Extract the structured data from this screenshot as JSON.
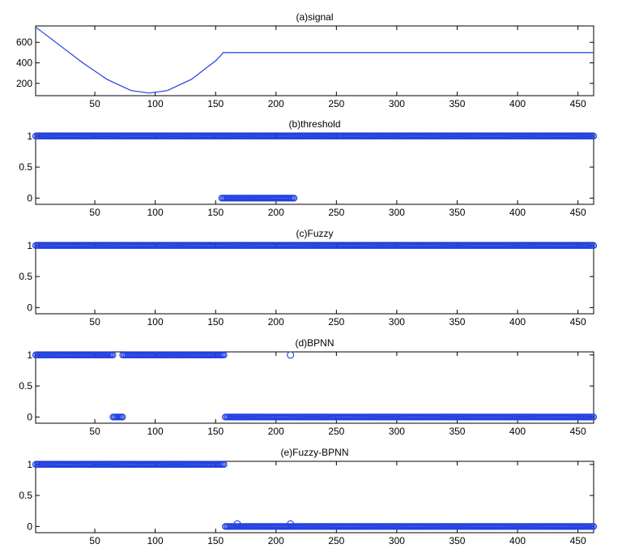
{
  "chart_data": [
    {
      "type": "line",
      "title": "(a)signal",
      "xlim": [
        1,
        463
      ],
      "ylim": [
        80,
        760
      ],
      "xticks": [
        50,
        100,
        150,
        200,
        250,
        300,
        350,
        400,
        450
      ],
      "yticks": [
        200,
        400,
        600
      ],
      "series": [
        {
          "color": "#1f3fe0",
          "x": [
            1,
            20,
            40,
            60,
            80,
            95,
            110,
            130,
            150,
            155,
            156,
            463
          ],
          "y": [
            750,
            580,
            400,
            240,
            130,
            105,
            130,
            240,
            420,
            480,
            500,
            500
          ]
        }
      ]
    },
    {
      "type": "scatter",
      "title": "(b)threshold",
      "xlim": [
        1,
        463
      ],
      "ylim": [
        -0.1,
        1.05
      ],
      "xticks": [
        50,
        100,
        150,
        200,
        250,
        300,
        350,
        400,
        450
      ],
      "yticks": [
        0,
        0.5,
        1
      ],
      "segments": [
        {
          "x_from": 1,
          "x_to": 463,
          "y": 1
        },
        {
          "x_from": 155,
          "x_to": 215,
          "y": 0
        }
      ]
    },
    {
      "type": "scatter",
      "title": "(c)Fuzzy",
      "xlim": [
        1,
        463
      ],
      "ylim": [
        -0.1,
        1.05
      ],
      "xticks": [
        50,
        100,
        150,
        200,
        250,
        300,
        350,
        400,
        450
      ],
      "yticks": [
        0,
        0.5,
        1
      ],
      "segments": [
        {
          "x_from": 1,
          "x_to": 463,
          "y": 1
        }
      ]
    },
    {
      "type": "scatter",
      "title": "(d)BPNN",
      "xlim": [
        1,
        463
      ],
      "ylim": [
        -0.1,
        1.05
      ],
      "xticks": [
        50,
        100,
        150,
        200,
        250,
        300,
        350,
        400,
        450
      ],
      "yticks": [
        0,
        0.5,
        1
      ],
      "segments": [
        {
          "x_from": 1,
          "x_to": 65,
          "y": 1
        },
        {
          "x_from": 65,
          "x_to": 73,
          "y": 0
        },
        {
          "x_from": 73,
          "x_to": 157,
          "y": 1
        },
        {
          "x_from": 158,
          "x_to": 463,
          "y": 0
        }
      ],
      "points": [
        {
          "x": 212,
          "y": 1
        }
      ]
    },
    {
      "type": "scatter",
      "title": "(e)Fuzzy-BPNN",
      "xlim": [
        1,
        463
      ],
      "ylim": [
        -0.1,
        1.05
      ],
      "xticks": [
        50,
        100,
        150,
        200,
        250,
        300,
        350,
        400,
        450
      ],
      "yticks": [
        0,
        0.5,
        1
      ],
      "segments": [
        {
          "x_from": 1,
          "x_to": 157,
          "y": 1
        },
        {
          "x_from": 158,
          "x_to": 463,
          "y": 0
        }
      ],
      "points": [
        {
          "x": 168,
          "y": 0.04
        },
        {
          "x": 212,
          "y": 0.04
        }
      ]
    }
  ]
}
